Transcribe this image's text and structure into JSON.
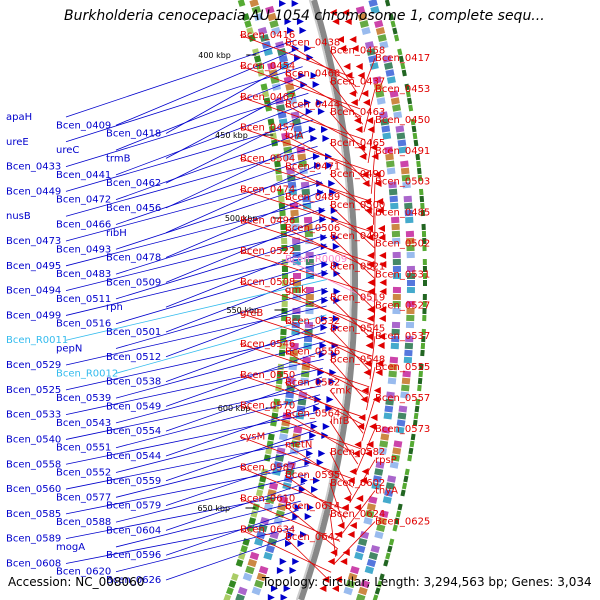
{
  "title": "Burkholderia cenocepacia AU 1054 chromosome 1, complete sequ...",
  "footer": {
    "accession": "Accession: NC_008060",
    "summary": "Topology: circular; Length: 3,294,563 bp; Genes: 3,034"
  },
  "colors": {
    "forward": "#0000cc",
    "reverse": "#e00000",
    "rna_forward": "#33bbee",
    "rna_reverse": "#ff88cc",
    "backbone": "#888888",
    "gc": "#228822"
  },
  "ticks": [
    "400 kbp",
    "450 kbp",
    "500 kbp",
    "550 kbp",
    "600 kbp",
    "650 kbp"
  ],
  "genes_left": [
    "apaH",
    "Bcen_0409",
    "Bcen_0418",
    "ureE",
    "ureC",
    "trmB",
    "Bcen_0433",
    "Bcen_0441",
    "Bcen_0462",
    "Bcen_0449",
    "Bcen_0472",
    "Bcen_0456",
    "nusB",
    "Bcen_0466",
    "ribH",
    "Bcen_0473",
    "Bcen_0493",
    "Bcen_0478",
    "Bcen_0495",
    "Bcen_0483",
    "Bcen_0509",
    "Bcen_0494",
    "Bcen_0511",
    "rph",
    "Bcen_0499",
    "Bcen_0516",
    "Bcen_0501",
    "Bcen_R0011",
    "pepN",
    "Bcen_0512",
    "Bcen_0529",
    "Bcen_R0012",
    "Bcen_0538",
    "Bcen_0525",
    "Bcen_0539",
    "Bcen_0549",
    "Bcen_0533",
    "Bcen_0543",
    "Bcen_0554",
    "Bcen_0540",
    "Bcen_0551",
    "Bcen_0544",
    "Bcen_0558",
    "Bcen_0552",
    "Bcen_0559",
    "Bcen_0560",
    "Bcen_0577",
    "Bcen_0579",
    "Bcen_0585",
    "Bcen_0588",
    "Bcen_0604",
    "Bcen_0589",
    "mogA",
    "Bcen_0596",
    "Bcen_0608",
    "Bcen_0620",
    "Bcen_0626"
  ],
  "genes_right": [
    "Bcen_0416",
    "Bcen_0438",
    "Bcen_0458",
    "Bcen_0417",
    "Bcen_0454",
    "Bcen_0468",
    "Bcen_0437",
    "Bcen_0453",
    "Bcen_0467",
    "Bcen_0444",
    "Bcen_0463",
    "Bcen_0450",
    "Bcen_0457",
    "lolA",
    "Bcen_0465",
    "Bcen_0491",
    "Bcen_0504",
    "Bcen_0471",
    "Bcen_0490",
    "Bcen_0503",
    "Bcen_0474",
    "Bcen_0489",
    "Bcen_0500",
    "Bcen_0485",
    "Bcen_0496",
    "Bcen_0506",
    "Bcen_0492",
    "Bcen_0502",
    "Bcen_0522",
    "Bcen_R0009",
    "Bcen_0521",
    "Bcen_0531",
    "Bcen_0508",
    "gmk",
    "Bcen_0519",
    "Bcen_0527",
    "greB",
    "Bcen_0532",
    "Bcen_0545",
    "Bcen_0537",
    "Bcen_0546",
    "Bcen_0556",
    "Bcen_0548",
    "Bcen_0555",
    "Bcen_0550",
    "Bcen_0562",
    "cmk",
    "Bcen_0557",
    "Bcen_0570",
    "Bcen_0564",
    "ihfB",
    "Bcen_0573",
    "cysM",
    "metN",
    "Bcen_0582",
    "rpsP",
    "Bcen_0587",
    "Bcen_0595",
    "Bcen_0602",
    "thyA",
    "Bcen_0610",
    "Bcen_0614",
    "Bcen_0624",
    "Bcen_0625",
    "Bcen_0634",
    "Bcen_0642"
  ]
}
